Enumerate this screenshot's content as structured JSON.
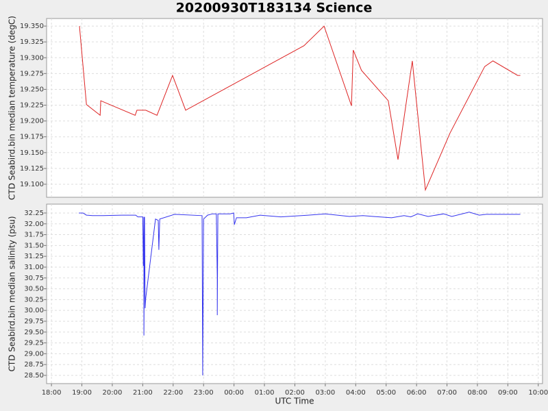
{
  "chart_data": [
    {
      "type": "line",
      "title": "20200930T183134 Science",
      "ylabel": "CTD Seabird.bin median temperature (degC)",
      "xlim": [
        17.84,
        34.14
      ],
      "ylim": [
        19.0794,
        19.362
      ],
      "yticks": [
        {
          "value": 19.1,
          "label": "19.100"
        },
        19.125,
        {
          "value": 19.15,
          "label": "19.150"
        },
        19.175,
        {
          "value": 19.2,
          "label": "19.200"
        },
        19.225,
        {
          "value": 19.25,
          "label": "19.250"
        },
        19.275,
        {
          "value": 19.3,
          "label": "19.300"
        },
        19.325,
        {
          "value": 19.35,
          "label": "19.350"
        }
      ],
      "grid": true,
      "series": [
        {
          "color": "#dd2222",
          "x": [
            18.92,
            19.15,
            19.6,
            19.62,
            20.75,
            20.81,
            21.1,
            21.47,
            21.98,
            22.41,
            26.3,
            26.96,
            27.86,
            27.92,
            28.19,
            29.07,
            29.39,
            29.86,
            30.29,
            31.1,
            32.24,
            32.51,
            33.32,
            33.41
          ],
          "values": [
            19.35,
            19.226,
            19.209,
            19.232,
            19.209,
            19.217,
            19.217,
            19.209,
            19.272,
            19.217,
            19.319,
            19.35,
            19.224,
            19.312,
            19.28,
            19.232,
            19.139,
            19.295,
            19.091,
            19.181,
            19.286,
            19.295,
            19.272,
            19.272
          ]
        }
      ]
    },
    {
      "type": "line",
      "ylabel": "CTD Seabird.bin median salinity (psu)",
      "xlabel": "UTC Time",
      "xlim": [
        17.84,
        34.14
      ],
      "ylim": [
        28.31,
        32.455
      ],
      "xticks": [
        {
          "value": 18,
          "label": "18:00"
        },
        {
          "value": 19,
          "label": "19:00"
        },
        {
          "value": 20,
          "label": "20:00"
        },
        {
          "value": 21,
          "label": "21:00"
        },
        {
          "value": 22,
          "label": "22:00"
        },
        {
          "value": 23,
          "label": "23:00"
        },
        {
          "value": 24,
          "label": "00:00"
        },
        {
          "value": 25,
          "label": "01:00"
        },
        {
          "value": 26,
          "label": "02:00"
        },
        {
          "value": 27,
          "label": "03:00"
        },
        {
          "value": 28,
          "label": "04:00"
        },
        {
          "value": 29,
          "label": "05:00"
        },
        {
          "value": 30,
          "label": "06:00"
        },
        {
          "value": 31,
          "label": "07:00"
        },
        {
          "value": 32,
          "label": "08:00"
        },
        {
          "value": 33,
          "label": "09:00"
        },
        {
          "value": 34,
          "label": "10:00"
        }
      ],
      "yticks": [
        {
          "value": 28.5,
          "label": "28.50"
        },
        28.75,
        {
          "value": 29,
          "label": "29.00"
        },
        29.25,
        {
          "value": 29.5,
          "label": "29.50"
        },
        29.75,
        {
          "value": 30,
          "label": "30.00"
        },
        30.25,
        {
          "value": 30.5,
          "label": "30.50"
        },
        30.75,
        {
          "value": 31,
          "label": "31.00"
        },
        31.25,
        {
          "value": 31.5,
          "label": "31.50"
        },
        31.75,
        {
          "value": 32,
          "label": "32.00"
        },
        32.25
      ],
      "grid": true,
      "series": [
        {
          "color": "#3333ee",
          "x": [
            18.9,
            19.04,
            19.15,
            19.35,
            19.69,
            20.32,
            20.77,
            20.84,
            21.0,
            21.02,
            21.04,
            21.04,
            21.06,
            21.08,
            21.1,
            21.42,
            21.51,
            21.53,
            21.56,
            22.05,
            22.95,
            22.97,
            23.0,
            23.13,
            23.29,
            23.42,
            23.45,
            23.45,
            23.47,
            23.87,
            23.99,
            24.01,
            24.08,
            24.41,
            24.86,
            25.54,
            26.44,
            27.0,
            27.79,
            28.24,
            28.58,
            29.18,
            29.59,
            29.81,
            30.04,
            30.38,
            30.89,
            31.16,
            31.73,
            32.06,
            32.29,
            33.41
          ],
          "values": [
            32.25,
            32.25,
            32.2,
            32.19,
            32.19,
            32.2,
            32.2,
            32.16,
            32.16,
            31.03,
            32.16,
            29.42,
            32.16,
            30.05,
            30.29,
            32.11,
            32.08,
            31.4,
            32.11,
            32.22,
            32.19,
            28.5,
            32.11,
            32.2,
            32.23,
            32.23,
            30.75,
            29.89,
            32.23,
            32.23,
            32.25,
            31.98,
            32.14,
            32.14,
            32.2,
            32.16,
            32.2,
            32.23,
            32.17,
            32.19,
            32.17,
            32.14,
            32.19,
            32.16,
            32.23,
            32.17,
            32.23,
            32.17,
            32.27,
            32.2,
            32.22,
            32.22
          ]
        }
      ]
    }
  ]
}
